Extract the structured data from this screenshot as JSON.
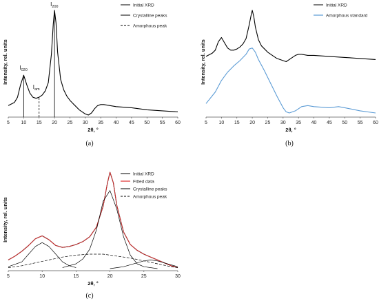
{
  "chart_data": [
    {
      "panel": "a",
      "type": "line",
      "caption": "(a)",
      "xlabel": "2θ, °",
      "ylabel": "Intensity, rel. units",
      "xlim": [
        5,
        60
      ],
      "xticks": [
        5,
        10,
        15,
        20,
        25,
        30,
        35,
        40,
        45,
        50,
        55,
        60
      ],
      "legend": [
        "Initial XRD",
        "Crystalline peaks",
        "Amorphous peak"
      ],
      "legend_position": "top-right",
      "annotations": [
        {
          "main": "I",
          "sub": "020",
          "x": 10
        },
        {
          "main": "I",
          "sub": "am",
          "x": 15
        },
        {
          "main": "I",
          "sub": "200",
          "x": 20
        }
      ],
      "series": [
        {
          "style": "solid",
          "x": [
            5,
            7,
            8,
            9,
            10,
            11,
            12,
            13,
            14,
            15,
            16,
            17,
            18,
            19,
            19.6,
            20,
            20.5,
            21,
            22,
            23,
            24,
            25,
            26,
            27,
            28,
            29,
            30,
            31,
            32,
            33,
            34,
            35,
            36,
            38,
            40,
            45,
            50,
            55,
            60
          ],
          "y": [
            0.09,
            0.12,
            0.17,
            0.29,
            0.38,
            0.29,
            0.21,
            0.17,
            0.16,
            0.17,
            0.19,
            0.23,
            0.31,
            0.58,
            0.87,
            1.0,
            0.88,
            0.6,
            0.34,
            0.24,
            0.18,
            0.14,
            0.11,
            0.08,
            0.05,
            0.03,
            0.01,
            0.0,
            0.02,
            0.06,
            0.09,
            0.1,
            0.1,
            0.09,
            0.08,
            0.07,
            0.05,
            0.04,
            0.03
          ]
        }
      ],
      "vlines": [
        {
          "style": "solid",
          "x": 10,
          "y": 0.38
        },
        {
          "style": "dashed",
          "x": 15,
          "y": 0.17
        },
        {
          "style": "solid",
          "x": 20,
          "y": 1.0
        }
      ]
    },
    {
      "panel": "b",
      "type": "line",
      "caption": "(b)",
      "xlabel": "2θ, °",
      "ylabel": "Intensity, rel. units",
      "xlim": [
        5,
        60
      ],
      "xticks": [
        5,
        10,
        15,
        20,
        25,
        30,
        35,
        40,
        45,
        50,
        55,
        60
      ],
      "legend": [
        "Initial XRD",
        "Amorphous standard"
      ],
      "legend_position": "top-right",
      "series": [
        {
          "name": "Initial XRD",
          "color": "#000000",
          "x": [
            5,
            7,
            8,
            9,
            10,
            11,
            12,
            13,
            14,
            15,
            16,
            17,
            18,
            19,
            19.6,
            20,
            20.5,
            21,
            22,
            23,
            24,
            25,
            26,
            27,
            28,
            29,
            30,
            31,
            32,
            33,
            34,
            35,
            36,
            38,
            40,
            45,
            50,
            55,
            60
          ],
          "y": [
            0.56,
            0.59,
            0.62,
            0.7,
            0.74,
            0.69,
            0.64,
            0.62,
            0.62,
            0.63,
            0.65,
            0.68,
            0.73,
            0.86,
            0.95,
            1.0,
            0.94,
            0.84,
            0.72,
            0.66,
            0.63,
            0.6,
            0.58,
            0.56,
            0.54,
            0.53,
            0.52,
            0.51,
            0.53,
            0.55,
            0.57,
            0.58,
            0.58,
            0.57,
            0.57,
            0.56,
            0.55,
            0.54,
            0.53
          ]
        },
        {
          "name": "Amorphous standard",
          "color": "#5b9bd5",
          "x": [
            5,
            8,
            10,
            12,
            14,
            16,
            18,
            19,
            20,
            21,
            22,
            24,
            26,
            28,
            30,
            31,
            32,
            34,
            36,
            38,
            40,
            45,
            48,
            50,
            55,
            60
          ],
          "y": [
            0.11,
            0.22,
            0.33,
            0.41,
            0.47,
            0.52,
            0.58,
            0.63,
            0.64,
            0.6,
            0.53,
            0.42,
            0.3,
            0.18,
            0.07,
            0.03,
            0.02,
            0.04,
            0.08,
            0.09,
            0.08,
            0.07,
            0.08,
            0.07,
            0.04,
            0.02
          ]
        }
      ]
    },
    {
      "panel": "c",
      "type": "line",
      "caption": "(c)",
      "xlabel": "2θ, °",
      "ylabel": "Intensity, rel. units",
      "xlim": [
        5,
        30
      ],
      "xticks": [
        5,
        10,
        15,
        20,
        25,
        30
      ],
      "legend": [
        "Initial XRD",
        "Fitted data",
        "Crystalline peaks",
        "Amorphous peak"
      ],
      "legend_position": "top-right",
      "series": [
        {
          "name": "Initial XRD",
          "color": "#000000",
          "x": [
            5,
            6,
            7,
            8,
            9,
            10,
            11,
            12,
            13,
            14,
            15,
            16,
            17,
            18,
            19,
            19.6,
            20,
            20.5,
            21,
            22,
            23,
            24,
            25,
            26,
            27,
            28,
            29,
            30
          ],
          "y": [
            0.09,
            0.13,
            0.18,
            0.24,
            0.31,
            0.34,
            0.3,
            0.24,
            0.22,
            0.23,
            0.25,
            0.28,
            0.33,
            0.43,
            0.65,
            0.88,
            1.0,
            0.89,
            0.66,
            0.38,
            0.25,
            0.19,
            0.15,
            0.12,
            0.09,
            0.06,
            0.03,
            0.01
          ]
        },
        {
          "name": "Fitted data",
          "color": "#e03030",
          "x": [
            5,
            6,
            7,
            8,
            9,
            10,
            11,
            12,
            13,
            14,
            15,
            16,
            17,
            18,
            19,
            19.6,
            20,
            20.5,
            21,
            22,
            23,
            24,
            25,
            26,
            27,
            28,
            29,
            30
          ],
          "y": [
            0.09,
            0.13,
            0.18,
            0.24,
            0.31,
            0.34,
            0.3,
            0.24,
            0.22,
            0.23,
            0.25,
            0.28,
            0.33,
            0.43,
            0.65,
            0.88,
            1.0,
            0.89,
            0.66,
            0.38,
            0.25,
            0.19,
            0.15,
            0.12,
            0.09,
            0.06,
            0.03,
            0.01
          ]
        },
        {
          "name": "Crystalline peaks",
          "color": "#000000",
          "x": [
            5,
            7,
            8,
            9,
            10,
            11,
            12,
            13,
            14,
            15
          ],
          "y": [
            0.02,
            0.07,
            0.15,
            0.23,
            0.27,
            0.23,
            0.15,
            0.07,
            0.03,
            0.01
          ]
        },
        {
          "name": "Crystalline peaks",
          "color": "#000000",
          "x": [
            13,
            15,
            16,
            17,
            18,
            19,
            20,
            21,
            22,
            23,
            24,
            25,
            27
          ],
          "y": [
            0.01,
            0.05,
            0.1,
            0.2,
            0.4,
            0.7,
            0.81,
            0.62,
            0.33,
            0.14,
            0.05,
            0.02,
            0.0
          ]
        },
        {
          "name": "Crystalline peaks",
          "color": "#000000",
          "x": [
            20,
            21,
            22,
            23,
            24,
            25,
            26,
            27,
            28,
            29,
            30
          ],
          "y": [
            0.0,
            0.01,
            0.02,
            0.04,
            0.06,
            0.08,
            0.09,
            0.08,
            0.06,
            0.04,
            0.02
          ]
        },
        {
          "name": "Amorphous peak",
          "color": "#000000",
          "style": "dashed",
          "x": [
            5,
            7,
            9,
            11,
            13,
            15,
            17,
            18,
            19,
            21,
            23,
            25,
            27,
            29,
            30
          ],
          "y": [
            0.01,
            0.03,
            0.06,
            0.09,
            0.12,
            0.14,
            0.15,
            0.15,
            0.15,
            0.13,
            0.11,
            0.08,
            0.05,
            0.02,
            0.01
          ]
        }
      ]
    }
  ],
  "palette": {
    "axis": "#555555",
    "text": "#111111",
    "blue": "#5b9bd5",
    "red": "#e03030"
  }
}
